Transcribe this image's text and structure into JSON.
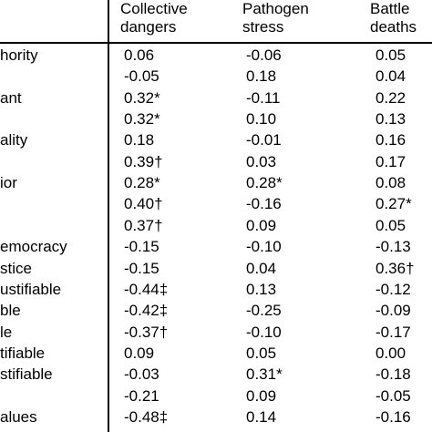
{
  "headers": [
    {
      "line1": "Collective",
      "line2": "dangers"
    },
    {
      "line1": "Pathogen",
      "line2": "stress"
    },
    {
      "line1": "Battle",
      "line2": "deaths"
    }
  ],
  "rows": [
    {
      "label": "hority",
      "values": [
        "0.06",
        "-0.06",
        "0.05"
      ]
    },
    {
      "label": "",
      "values": [
        "-0.05",
        "0.18",
        "0.04"
      ]
    },
    {
      "label": "ant",
      "values": [
        "0.32*",
        "-0.11",
        "0.22"
      ]
    },
    {
      "label": "",
      "values": [
        "0.32*",
        "0.10",
        "0.13"
      ]
    },
    {
      "label": "ality",
      "values": [
        "0.18",
        "-0.01",
        "0.16"
      ]
    },
    {
      "label": "",
      "values": [
        "0.39†",
        "0.03",
        "0.17"
      ]
    },
    {
      "label": "ior",
      "values": [
        "0.28*",
        "0.28*",
        "0.08"
      ]
    },
    {
      "label": "",
      "values": [
        "0.40†",
        "-0.16",
        "0.27*"
      ]
    },
    {
      "label": "",
      "values": [
        "0.37†",
        "0.09",
        "0.05"
      ]
    },
    {
      "label": "emocracy",
      "values": [
        "-0.15",
        "-0.10",
        "-0.13"
      ]
    },
    {
      "label": "stice",
      "values": [
        "-0.15",
        "0.04",
        "0.36†"
      ]
    },
    {
      "label": "ustifiable",
      "values": [
        "-0.44‡",
        "0.13",
        "-0.12"
      ]
    },
    {
      "label": "ble",
      "values": [
        "-0.42‡",
        "-0.25",
        "-0.09"
      ]
    },
    {
      "label": "le",
      "values": [
        "-0.37†",
        "-0.10",
        "-0.17"
      ]
    },
    {
      "label": "tifiable",
      "values": [
        "0.09",
        "0.05",
        "0.00"
      ]
    },
    {
      "label": "stifiable",
      "values": [
        "-0.03",
        "0.31*",
        "-0.18"
      ]
    },
    {
      "label": "",
      "values": [
        "-0.21",
        "0.09",
        "-0.05"
      ]
    },
    {
      "label": "alues",
      "values": [
        "-0.48‡",
        "0.14",
        "-0.16"
      ]
    }
  ]
}
